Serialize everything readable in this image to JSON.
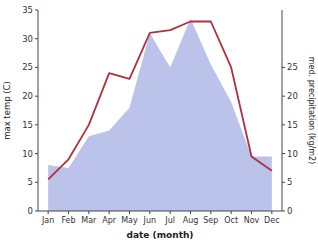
{
  "chart_data": {
    "type": "line",
    "categories": [
      "Jan",
      "Feb",
      "Mar",
      "Apr",
      "May",
      "Jun",
      "Jul",
      "Aug",
      "Sep",
      "Oct",
      "Nov",
      "Dec"
    ],
    "series": [
      {
        "type": "area",
        "color": "#b0b8e8",
        "values": [
          8.0,
          7.5,
          13.0,
          14.0,
          18.0,
          31.0,
          25.0,
          33.5,
          25.5,
          19.0,
          9.5,
          9.5
        ]
      },
      {
        "type": "line",
        "color": "#b03040",
        "values": [
          5.5,
          9.0,
          15.0,
          24.0,
          23.0,
          31.0,
          31.5,
          33.0,
          33.0,
          25.0,
          9.5,
          7.0
        ]
      }
    ],
    "y_label": "max temp (C)",
    "y2_label": "med. precipitation (kg/m2)",
    "x_label": "date (month)",
    "ylim": [
      0,
      35
    ],
    "yticks": [
      0,
      5,
      10,
      15,
      20,
      25,
      30,
      35
    ],
    "y2lim": [
      0,
      35
    ],
    "y2ticks": [
      0,
      5,
      10,
      15,
      20,
      25
    ],
    "grid": false
  }
}
